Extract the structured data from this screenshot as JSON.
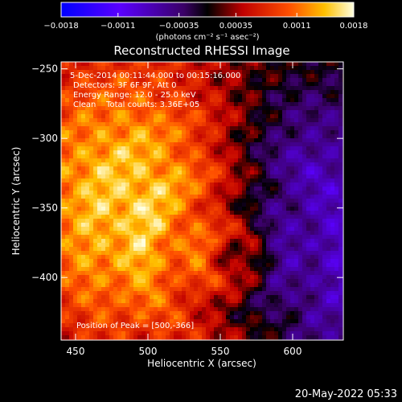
{
  "chart_data": {
    "type": "heatmap",
    "title": "Reconstructed RHESSI Image",
    "xlabel": "Heliocentric X (arcsec)",
    "ylabel": "Heliocentric Y (arcsec)",
    "xlim": [
      440,
      635
    ],
    "ylim": [
      -445,
      -245
    ],
    "x_ticks": [
      450,
      500,
      550,
      600
    ],
    "x_tick_labels": [
      "450",
      "500",
      "550",
      "600"
    ],
    "y_ticks": [
      -250,
      -300,
      -350,
      -400
    ],
    "y_tick_labels": [
      "−250",
      "−300",
      "−350",
      "−400"
    ],
    "colorbar": {
      "range": [
        -0.0018,
        0.0018
      ],
      "ticks": [
        -0.0018,
        -0.0011,
        -0.00035,
        0.00035,
        0.0011,
        0.0018
      ],
      "tick_labels": [
        "−0.0018",
        "−0.0011",
        "−0.00035",
        "0.00035",
        "0.0011",
        "0.0018"
      ],
      "unit_label": "(photons cm⁻² s⁻¹ asec⁻²)"
    },
    "peak": [
      500,
      -366
    ],
    "annotations": [
      "5-Dec-2014 00:11:44.000 to 00:15:16.000",
      "Detectors: 3F 6F 9F, Att 0",
      "Energy Range: 12.0 - 25.0 keV",
      "Clean    Total counts: 3.36E+05"
    ],
    "peak_label": "Position of Peak = [500,-366]"
  },
  "footer": {
    "date": "20-May-2022 05:33"
  }
}
